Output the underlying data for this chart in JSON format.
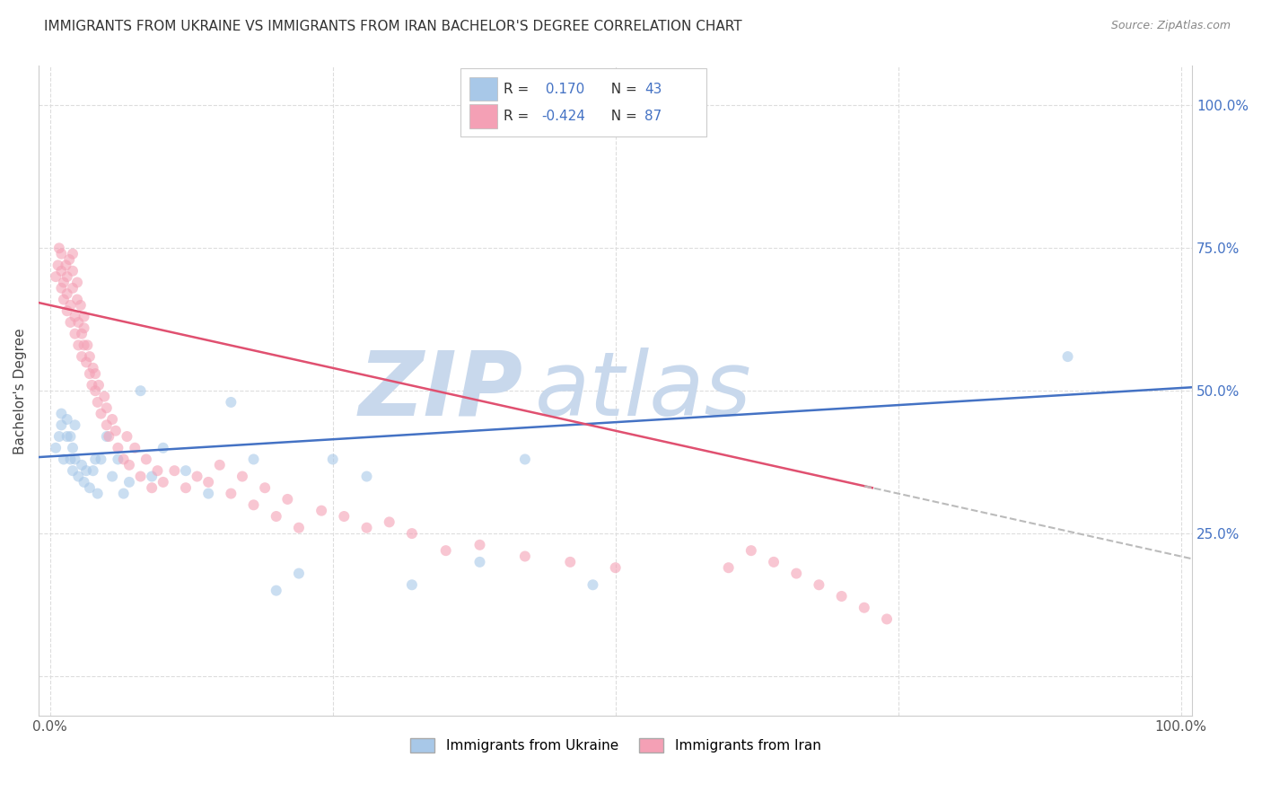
{
  "title": "IMMIGRANTS FROM UKRAINE VS IMMIGRANTS FROM IRAN BACHELOR'S DEGREE CORRELATION CHART",
  "source": "Source: ZipAtlas.com",
  "ylabel": "Bachelor's Degree",
  "y_tick_labels": [
    "",
    "25.0%",
    "50.0%",
    "75.0%",
    "100.0%"
  ],
  "y_tick_positions": [
    0.0,
    0.25,
    0.5,
    0.75,
    1.0
  ],
  "xlim": [
    -0.01,
    1.01
  ],
  "ylim": [
    -0.07,
    1.07
  ],
  "ukraine_R": 0.17,
  "ukraine_N": 43,
  "iran_R": -0.424,
  "iran_N": 87,
  "ukraine_color": "#A8C8E8",
  "iran_color": "#F4A0B5",
  "ukraine_line_color": "#4472C4",
  "iran_line_color": "#E05070",
  "scatter_alpha": 0.6,
  "marker_size": 75,
  "watermark_text": "ZIP",
  "watermark_text2": "atlas",
  "watermark_color": "#D0E0EE",
  "legend_ukraine_label": "Immigrants from Ukraine",
  "legend_iran_label": "Immigrants from Iran",
  "background_color": "#FFFFFF",
  "grid_color": "#DDDDDD",
  "ukraine_intercept": 0.385,
  "ukraine_slope": 0.12,
  "iran_intercept": 0.65,
  "iran_slope": -0.44,
  "ukraine_x": [
    0.005,
    0.008,
    0.01,
    0.01,
    0.012,
    0.015,
    0.015,
    0.018,
    0.018,
    0.02,
    0.02,
    0.022,
    0.022,
    0.025,
    0.028,
    0.03,
    0.032,
    0.035,
    0.038,
    0.04,
    0.042,
    0.045,
    0.05,
    0.055,
    0.06,
    0.065,
    0.07,
    0.08,
    0.09,
    0.1,
    0.12,
    0.14,
    0.16,
    0.18,
    0.2,
    0.22,
    0.25,
    0.28,
    0.32,
    0.38,
    0.42,
    0.48,
    0.9
  ],
  "ukraine_y": [
    0.4,
    0.42,
    0.44,
    0.46,
    0.38,
    0.42,
    0.45,
    0.38,
    0.42,
    0.36,
    0.4,
    0.44,
    0.38,
    0.35,
    0.37,
    0.34,
    0.36,
    0.33,
    0.36,
    0.38,
    0.32,
    0.38,
    0.42,
    0.35,
    0.38,
    0.32,
    0.34,
    0.5,
    0.35,
    0.4,
    0.36,
    0.32,
    0.48,
    0.38,
    0.15,
    0.18,
    0.38,
    0.35,
    0.16,
    0.2,
    0.38,
    0.16,
    0.56
  ],
  "iran_x": [
    0.005,
    0.007,
    0.008,
    0.01,
    0.01,
    0.01,
    0.012,
    0.012,
    0.014,
    0.015,
    0.015,
    0.015,
    0.017,
    0.018,
    0.018,
    0.02,
    0.02,
    0.02,
    0.022,
    0.022,
    0.024,
    0.024,
    0.025,
    0.025,
    0.027,
    0.028,
    0.028,
    0.03,
    0.03,
    0.03,
    0.032,
    0.033,
    0.035,
    0.035,
    0.037,
    0.038,
    0.04,
    0.04,
    0.042,
    0.043,
    0.045,
    0.048,
    0.05,
    0.05,
    0.052,
    0.055,
    0.058,
    0.06,
    0.065,
    0.068,
    0.07,
    0.075,
    0.08,
    0.085,
    0.09,
    0.095,
    0.1,
    0.11,
    0.12,
    0.13,
    0.14,
    0.15,
    0.16,
    0.17,
    0.18,
    0.19,
    0.2,
    0.21,
    0.22,
    0.24,
    0.26,
    0.28,
    0.3,
    0.32,
    0.35,
    0.38,
    0.42,
    0.46,
    0.5,
    0.6,
    0.62,
    0.64,
    0.66,
    0.68,
    0.7,
    0.72,
    0.74
  ],
  "iran_y": [
    0.7,
    0.72,
    0.75,
    0.68,
    0.71,
    0.74,
    0.66,
    0.69,
    0.72,
    0.64,
    0.67,
    0.7,
    0.73,
    0.62,
    0.65,
    0.68,
    0.71,
    0.74,
    0.6,
    0.63,
    0.66,
    0.69,
    0.58,
    0.62,
    0.65,
    0.56,
    0.6,
    0.63,
    0.58,
    0.61,
    0.55,
    0.58,
    0.53,
    0.56,
    0.51,
    0.54,
    0.5,
    0.53,
    0.48,
    0.51,
    0.46,
    0.49,
    0.44,
    0.47,
    0.42,
    0.45,
    0.43,
    0.4,
    0.38,
    0.42,
    0.37,
    0.4,
    0.35,
    0.38,
    0.33,
    0.36,
    0.34,
    0.36,
    0.33,
    0.35,
    0.34,
    0.37,
    0.32,
    0.35,
    0.3,
    0.33,
    0.28,
    0.31,
    0.26,
    0.29,
    0.28,
    0.26,
    0.27,
    0.25,
    0.22,
    0.23,
    0.21,
    0.2,
    0.19,
    0.19,
    0.22,
    0.2,
    0.18,
    0.16,
    0.14,
    0.12,
    0.1
  ]
}
